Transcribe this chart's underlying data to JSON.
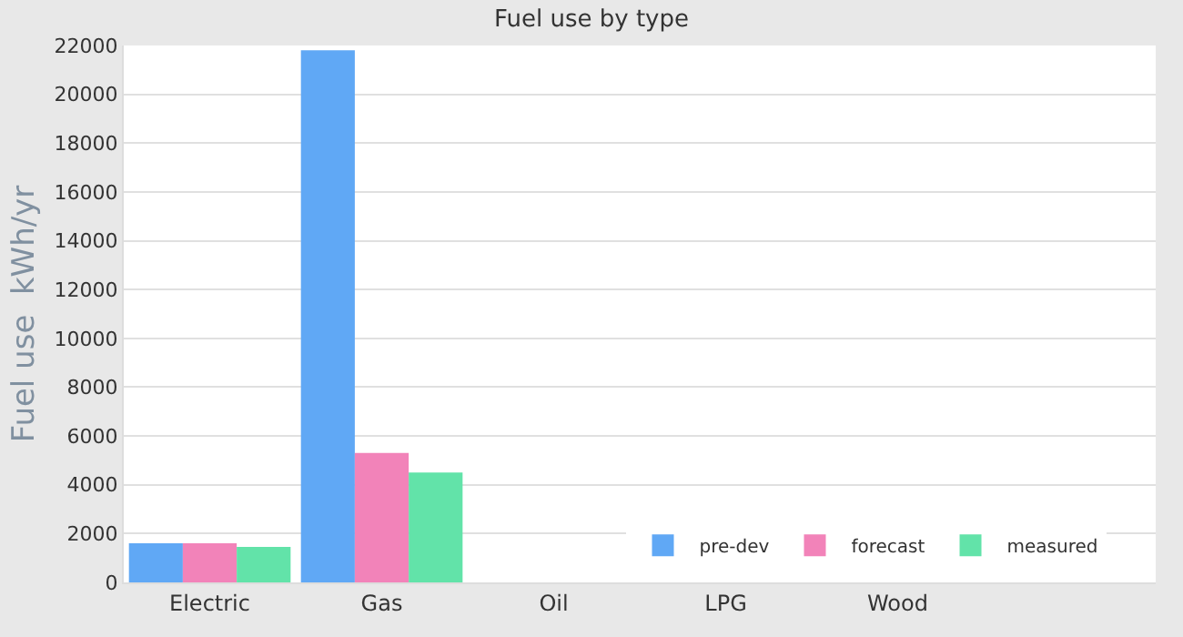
{
  "chart_data": {
    "type": "bar",
    "title": "Fuel use by type",
    "ylabel": "Fuel use  kWh/yr",
    "categories": [
      "Electric",
      "Gas",
      "Oil",
      "LPG",
      "Wood",
      null
    ],
    "series": [
      {
        "name": "pre-dev",
        "color": "#60a8f5",
        "values": [
          1600,
          21800,
          null,
          null,
          null,
          null
        ]
      },
      {
        "name": "forecast",
        "color": "#f283b9",
        "values": [
          1600,
          5300,
          null,
          null,
          null,
          null
        ]
      },
      {
        "name": "measured",
        "color": "#62e3a9",
        "values": [
          1450,
          4500,
          null,
          null,
          null,
          null
        ]
      }
    ],
    "ylim": [
      0,
      22000
    ],
    "yticks": [
      0,
      2000,
      4000,
      6000,
      8000,
      10000,
      12000,
      14000,
      16000,
      18000,
      20000,
      22000
    ],
    "grid": "y",
    "legend": "bottom"
  }
}
